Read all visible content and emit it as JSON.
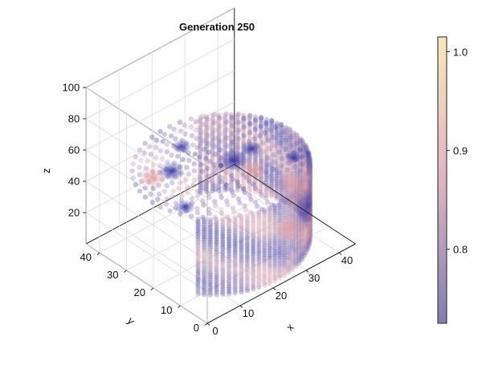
{
  "chart_data": {
    "type": "scatter",
    "title": "Generation 250",
    "xlabel": "x",
    "ylabel": "y",
    "zlabel": "z",
    "x_ticks": [
      0,
      10,
      20,
      30,
      40
    ],
    "y_ticks": [
      0,
      10,
      20,
      30,
      40
    ],
    "z_ticks": [
      20,
      40,
      60,
      80,
      100
    ],
    "xlim": [
      0,
      45
    ],
    "ylim": [
      0,
      45
    ],
    "zlim": [
      0,
      100
    ],
    "projection": "3d-perspective",
    "grid": true,
    "shape": {
      "kind": "cylinder",
      "center_x": 22.5,
      "center_y": 22.5,
      "radius": 21,
      "z_min": 1,
      "z_max": 50
    },
    "colorbar": {
      "ticks": [
        0.8,
        0.9,
        1.0
      ],
      "tick_labels": [
        "0.8",
        "0.9",
        "1.0"
      ],
      "range": [
        0.725,
        1.015
      ],
      "colors": [
        "#7F7FB3",
        "#E0B4C3",
        "#F8E7BA"
      ],
      "placement": "right"
    },
    "colors": {
      "low": "#3a3aa8",
      "high": "#e0a5a8",
      "axis": "#222222",
      "grid": "#dddddd"
    }
  }
}
